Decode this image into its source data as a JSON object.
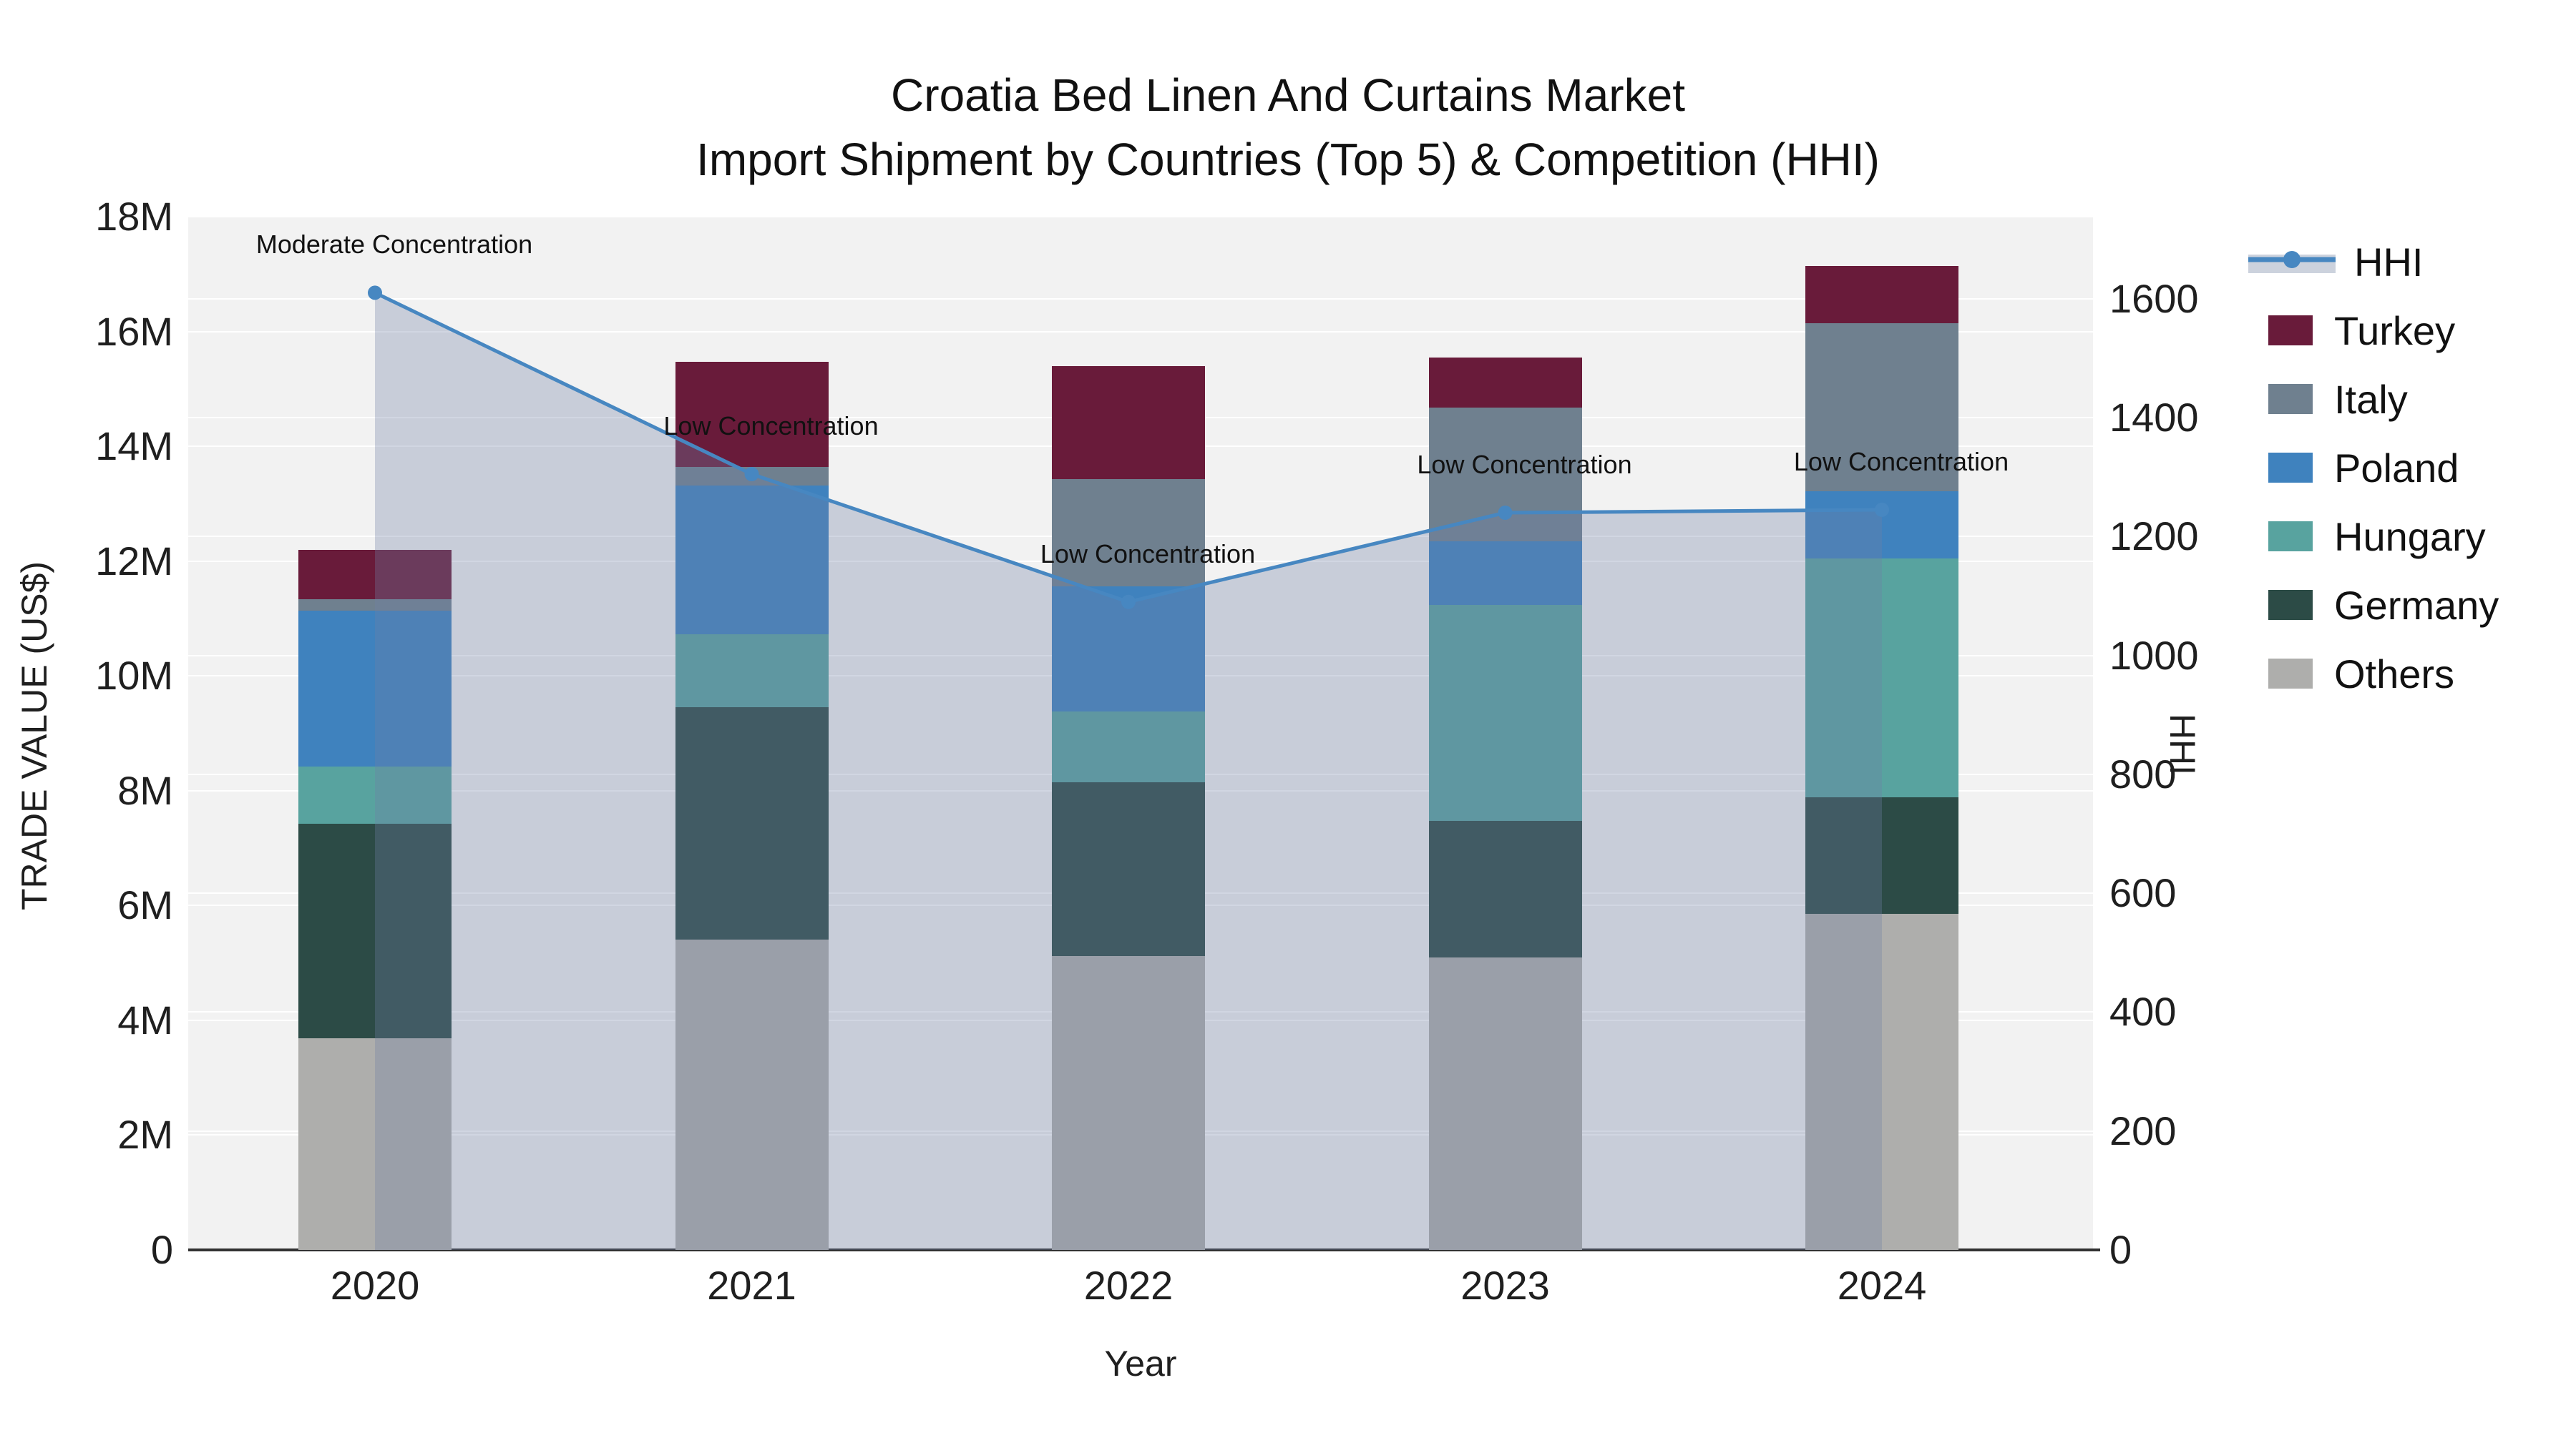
{
  "title": {
    "line1": "Croatia Bed Linen And Curtains Market",
    "line2": "Import Shipment by Countries (Top 5) & Competition (HHI)"
  },
  "axes": {
    "left": {
      "title": "TRADE VALUE (US$)",
      "ticks": [
        "0",
        "2M",
        "4M",
        "6M",
        "8M",
        "10M",
        "12M",
        "14M",
        "16M",
        "18M"
      ]
    },
    "right": {
      "title": "HHI",
      "ticks": [
        "0",
        "200",
        "400",
        "600",
        "800",
        "1000",
        "1200",
        "1400",
        "1600"
      ]
    },
    "x": {
      "title": "Year",
      "ticks": [
        "2020",
        "2021",
        "2022",
        "2023",
        "2024"
      ]
    }
  },
  "legend": {
    "items": [
      {
        "label": "HHI",
        "type": "line",
        "color": "#4787c1",
        "band_color": "#ccd2dd"
      },
      {
        "label": "Turkey",
        "type": "swatch",
        "color": "#691b3a"
      },
      {
        "label": "Italy",
        "type": "swatch",
        "color": "#6f808f"
      },
      {
        "label": "Poland",
        "type": "swatch",
        "color": "#3f82be"
      },
      {
        "label": "Hungary",
        "type": "swatch",
        "color": "#58a39f"
      },
      {
        "label": "Germany",
        "type": "swatch",
        "color": "#2c4b46"
      },
      {
        "label": "Others",
        "type": "swatch",
        "color": "#aeaeac"
      }
    ]
  },
  "chart_data": {
    "type": "bar",
    "subtype": "stacked-bar-with-line",
    "title": "Croatia Bed Linen And Curtains Market — Import Shipment by Countries (Top 5) & Competition (HHI)",
    "categories": [
      "2020",
      "2021",
      "2022",
      "2023",
      "2024"
    ],
    "bar_value_unit": "US$ millions",
    "series": [
      {
        "name": "Others",
        "color": "#aeaeac",
        "values": [
          3.69,
          5.41,
          5.12,
          5.09,
          5.85
        ]
      },
      {
        "name": "Germany",
        "color": "#2c4b46",
        "values": [
          3.73,
          4.04,
          3.03,
          2.38,
          2.03
        ]
      },
      {
        "name": "Hungary",
        "color": "#58a39f",
        "values": [
          1.0,
          1.27,
          1.23,
          3.77,
          4.16
        ]
      },
      {
        "name": "Poland",
        "color": "#3f82be",
        "values": [
          2.72,
          2.6,
          2.18,
          1.1,
          1.18
        ]
      },
      {
        "name": "Italy",
        "color": "#6f808f",
        "values": [
          0.2,
          0.32,
          1.87,
          2.34,
          2.92
        ]
      },
      {
        "name": "Turkey",
        "color": "#691b3a",
        "values": [
          0.86,
          1.83,
          1.97,
          0.87,
          1.0
        ]
      }
    ],
    "bar_totals": [
      12.2,
      15.47,
      15.4,
      15.55,
      17.14
    ],
    "line_series": {
      "name": "HHI",
      "axis": "right",
      "values": [
        1610,
        1305,
        1090,
        1240,
        1245
      ],
      "color": "#4787c1",
      "marker": "circle",
      "area_fill": "rgba(113,129,164,0.32)"
    },
    "annotations": [
      {
        "category": "2020",
        "text": "Moderate Concentration"
      },
      {
        "category": "2021",
        "text": "Low Concentration"
      },
      {
        "category": "2022",
        "text": "Low Concentration"
      },
      {
        "category": "2023",
        "text": "Low Concentration"
      },
      {
        "category": "2024",
        "text": "Low Concentration"
      }
    ],
    "xlabel": "Year",
    "ylabel_left": "TRADE VALUE (US$)",
    "ylabel_right": "HHI",
    "ylim_left_millions": [
      0,
      18
    ],
    "ylim_right": [
      0,
      1738
    ],
    "grid": true,
    "legend_position": "right"
  },
  "colors": {
    "background": "#ffffff",
    "plot_background": "#f2f2f2",
    "gridline": "#ffffff",
    "axis_line": "#323232",
    "tick_text": "#1f1f1f",
    "annotation_text": "#111111"
  }
}
